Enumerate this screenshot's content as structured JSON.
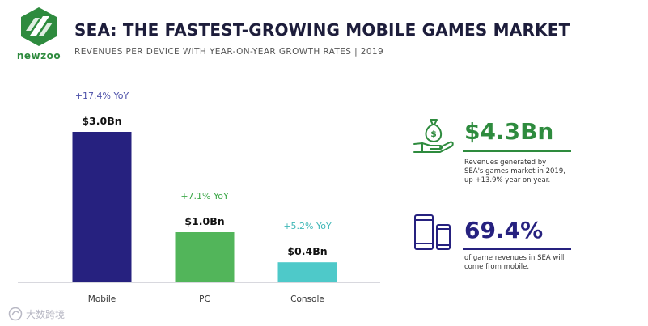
{
  "logo": {
    "text": "newzoo"
  },
  "header": {
    "title": "SEA: THE FASTEST-GROWING MOBILE GAMES MARKET",
    "subtitle": "REVENUES PER DEVICE WITH YEAR-ON-YEAR GROWTH RATES | 2019"
  },
  "chart_data": {
    "type": "bar",
    "categories": [
      "Mobile",
      "PC",
      "Console"
    ],
    "values": [
      3.0,
      1.0,
      0.4
    ],
    "value_labels": [
      "$3.0Bn",
      "$1.0Bn",
      "$0.4Bn"
    ],
    "growth_labels": [
      "+17.4% YoY",
      "+7.1% YoY",
      "+5.2% YoY"
    ],
    "colors": [
      "#26217f",
      "#52b55a",
      "#4ec9c9"
    ],
    "growth_colors": [
      "#4b4fa8",
      "#3ea84a",
      "#3fb7b7"
    ],
    "ylim": [
      0,
      3.0
    ],
    "unit": "USD billions",
    "grid": false
  },
  "stats": [
    {
      "value": "$4.3Bn",
      "description": "Revenues generated by SEA's games market in 2019, up +13.9% year on year.",
      "color": "#2e8b3e",
      "icon": "money-bag-hand-icon"
    },
    {
      "value": "69.4%",
      "description": "of game revenues in SEA will come from mobile.",
      "color": "#26217f",
      "icon": "mobile-devices-icon"
    }
  ],
  "watermark": {
    "text": "大数跨境",
    "icon": "watermark-logo-icon"
  }
}
